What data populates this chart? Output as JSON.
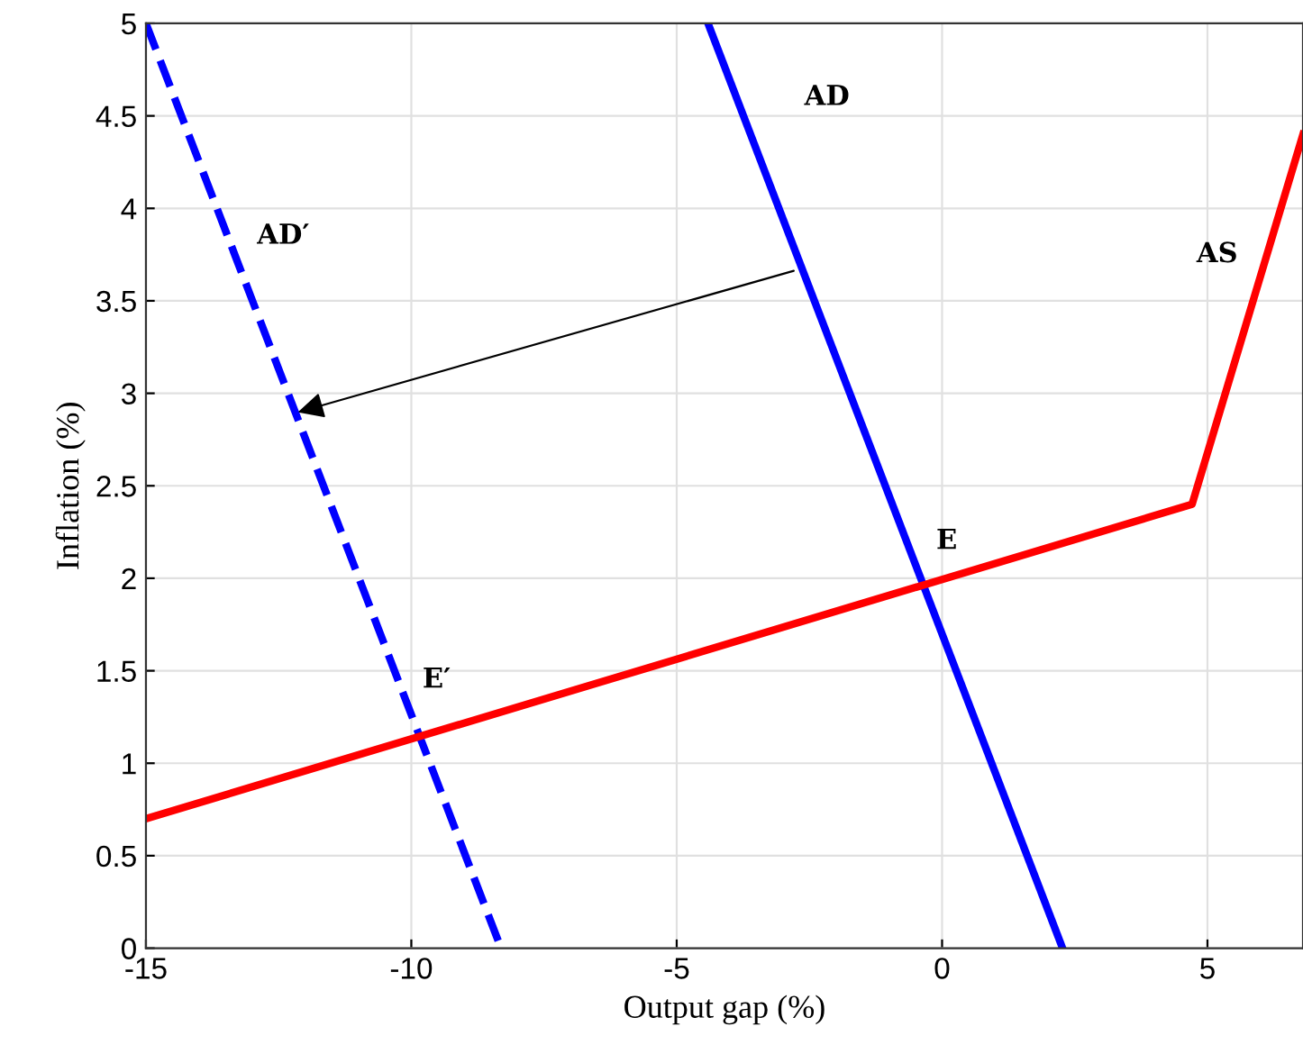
{
  "chart_data": {
    "type": "line",
    "xlabel": "Output gap (%)",
    "ylabel": "Inflation (%)",
    "xlim": [
      -15,
      6.8
    ],
    "xticks": [
      -15,
      -10,
      -5,
      0,
      5
    ],
    "ylim": [
      0,
      5
    ],
    "yticks": [
      0,
      0.5,
      1,
      1.5,
      2,
      2.5,
      3,
      3.5,
      4,
      4.5,
      5
    ],
    "grid": true,
    "series": [
      {
        "x": [
          -4.41,
          2.27
        ],
        "values": [
          5,
          0
        ],
        "color": "#0000ff",
        "line_style": "solid"
      },
      {
        "x": [
          -15,
          -8.31
        ],
        "values": [
          5,
          0
        ],
        "color": "#0000ff",
        "line_style": "dashed"
      },
      {
        "x": [
          -15,
          4.71,
          6.8
        ],
        "values": [
          0.7,
          2.4,
          4.4
        ],
        "color": "#ff0000",
        "line_style": "solid"
      }
    ],
    "annotations": [
      "AD",
      "AD′",
      "AS",
      "E",
      "E′"
    ]
  }
}
